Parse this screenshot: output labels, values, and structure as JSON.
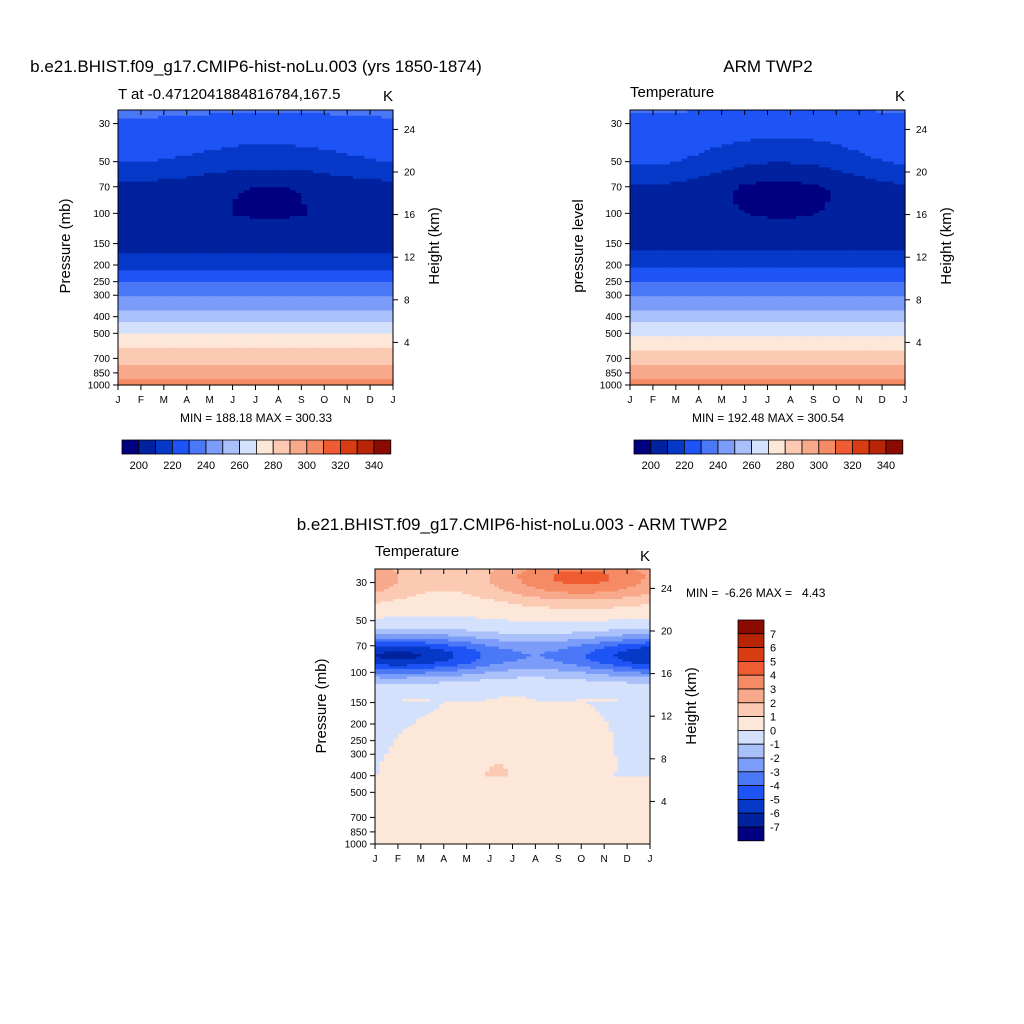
{
  "colors": {
    "abs_scale": [
      "#000080",
      "#00229f",
      "#0639c8",
      "#1e54f5",
      "#4b78f7",
      "#7b9cf9",
      "#aac0fb",
      "#d4e1fd",
      "#fde7d8",
      "#fccab3",
      "#f8a98b",
      "#f58b64",
      "#ef5c32",
      "#d83c12",
      "#b82506",
      "#8c0b00"
    ],
    "diff_scale": [
      "#000080",
      "#00229f",
      "#0639c8",
      "#1e54f5",
      "#4b78f7",
      "#7b9cf9",
      "#aac0fb",
      "#d4e1fd",
      "#fde7d8",
      "#fccab3",
      "#f8a98b",
      "#f58b64",
      "#ef5c32",
      "#d83c12",
      "#b82506",
      "#8c0b00"
    ]
  },
  "chart_data": [
    {
      "type": "heatmap",
      "title": "b.e21.BHIST.f09_g17.CMIP6-hist-noLu.003 (yrs 1850-1874)",
      "subtitle_left": "T at -0.4712041884816784,167.5",
      "subtitle_right": "K",
      "ylabel": "Pressure (mb)",
      "y2label": "Height (km)",
      "x_ticks": [
        "J",
        "F",
        "M",
        "A",
        "M",
        "J",
        "J",
        "A",
        "S",
        "O",
        "N",
        "D",
        "J"
      ],
      "y_ticks": [
        "30",
        "50",
        "70",
        "100",
        "150",
        "200",
        "250",
        "300",
        "400",
        "500",
        "700",
        "850",
        "1000"
      ],
      "y2_ticks": [
        "24",
        "20",
        "16",
        "12",
        "8",
        "4"
      ],
      "y_range_mb": [
        25,
        1000
      ],
      "stats": "MIN = 188.18 MAX = 300.33",
      "colorbar_ticks": [
        "200",
        "220",
        "240",
        "260",
        "280",
        "300",
        "320",
        "340"
      ],
      "colorbar_levels": [
        190,
        200,
        210,
        220,
        230,
        240,
        250,
        260,
        270,
        280,
        290,
        300,
        310,
        320,
        330,
        340
      ],
      "min": 188.18,
      "max": 300.33,
      "profile_p": [
        25,
        30,
        40,
        50,
        60,
        70,
        80,
        100,
        120,
        150,
        200,
        250,
        300,
        400,
        500,
        600,
        700,
        850,
        1000
      ],
      "profile_T": [
        221,
        218,
        212,
        207,
        200,
        193,
        192,
        191,
        192,
        195,
        207,
        219,
        230,
        246,
        259,
        269,
        276,
        285,
        296
      ]
    },
    {
      "type": "heatmap",
      "title": "ARM TWP2",
      "subtitle_left": "Temperature",
      "subtitle_right": "K",
      "ylabel": "pressure level",
      "y2label": "Height (km)",
      "x_ticks": [
        "J",
        "F",
        "M",
        "A",
        "M",
        "J",
        "J",
        "A",
        "S",
        "O",
        "N",
        "D",
        "J"
      ],
      "y_ticks": [
        "30",
        "50",
        "70",
        "100",
        "150",
        "200",
        "250",
        "300",
        "400",
        "500",
        "700",
        "850",
        "1000"
      ],
      "y2_ticks": [
        "24",
        "20",
        "16",
        "12",
        "8",
        "4"
      ],
      "y_range_mb": [
        25,
        1000
      ],
      "stats": "MIN = 192.48 MAX = 300.54",
      "colorbar_ticks": [
        "200",
        "220",
        "240",
        "260",
        "280",
        "300",
        "320",
        "340"
      ],
      "colorbar_levels": [
        190,
        200,
        210,
        220,
        230,
        240,
        250,
        260,
        270,
        280,
        290,
        300,
        310,
        320,
        330,
        340
      ],
      "min": 192.48,
      "max": 300.54,
      "profile_p": [
        25,
        30,
        40,
        50,
        60,
        70,
        80,
        100,
        120,
        150,
        200,
        250,
        300,
        400,
        500,
        600,
        700,
        850,
        1000
      ],
      "profile_T": [
        220,
        216,
        211,
        206,
        199,
        193,
        192,
        192,
        193,
        196,
        208,
        220,
        230,
        246,
        258,
        268,
        276,
        285,
        296
      ]
    },
    {
      "type": "heatmap",
      "title": "b.e21.BHIST.f09_g17.CMIP6-hist-noLu.003 - ARM TWP2",
      "subtitle_left": "Temperature",
      "subtitle_right": "K",
      "ylabel": "Pressure (mb)",
      "y2label": "Height (km)",
      "x_ticks": [
        "J",
        "F",
        "M",
        "A",
        "M",
        "J",
        "J",
        "A",
        "S",
        "O",
        "N",
        "D",
        "J"
      ],
      "y_ticks": [
        "30",
        "50",
        "70",
        "100",
        "150",
        "200",
        "250",
        "300",
        "400",
        "500",
        "700",
        "850",
        "1000"
      ],
      "y2_ticks": [
        "24",
        "20",
        "16",
        "12",
        "8",
        "4"
      ],
      "y_range_mb": [
        25,
        1000
      ],
      "stats_label": "MIN =  -6.26 MAX =   4.43",
      "colorbar_ticks": [
        "7",
        "6",
        "5",
        "4",
        "3",
        "2",
        "1",
        "0",
        "-1",
        "-2",
        "-3",
        "-4",
        "-5",
        "-6",
        "-7"
      ],
      "min": -6.26,
      "max": 4.43
    }
  ]
}
